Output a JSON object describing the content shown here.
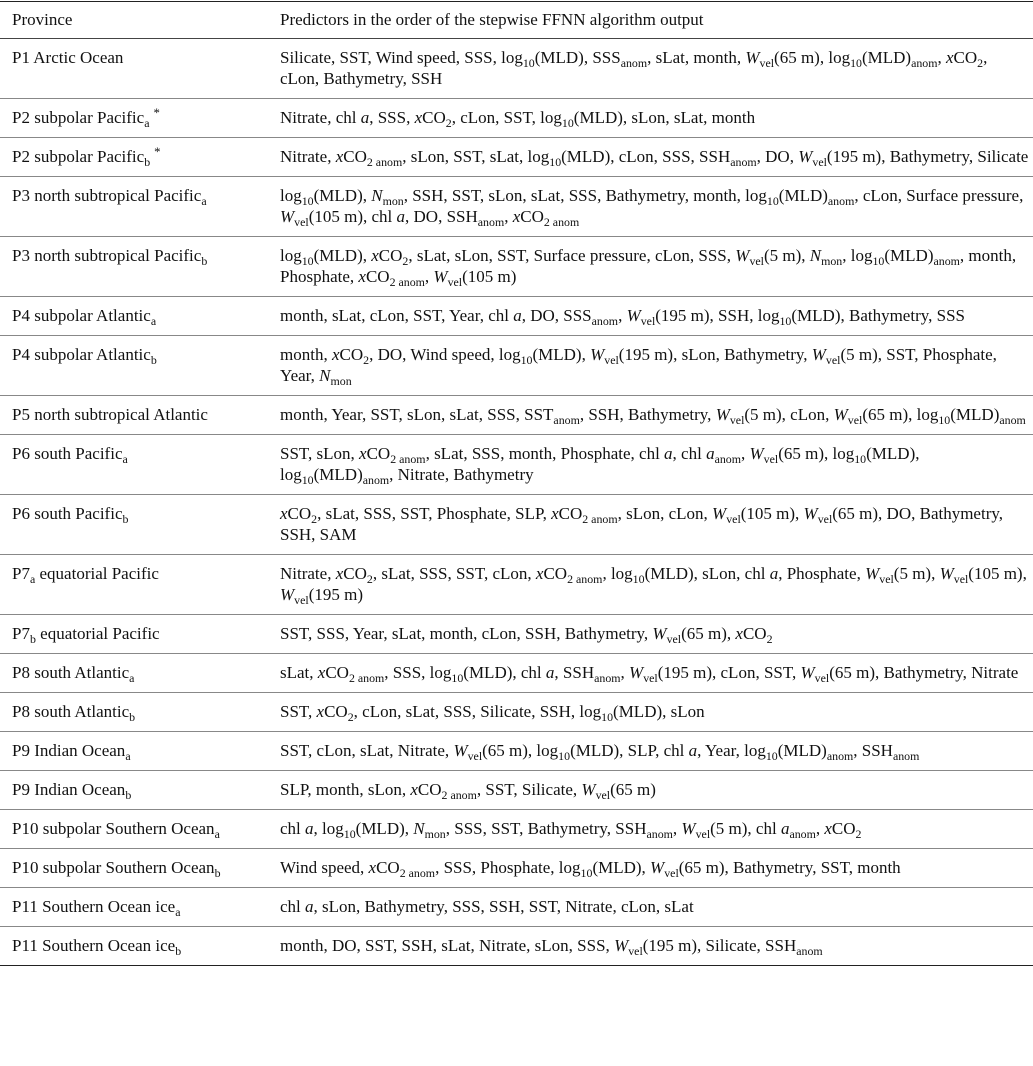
{
  "table": {
    "header": [
      "Province",
      "Predictors in the order of the stepwise FFNN algorithm output"
    ],
    "rows": [
      [
        "P1 Arctic Ocean",
        [
          "Silicate, SST, Wind speed, SSS, log",
          {
            "sub": "10"
          },
          "(MLD), SSS",
          {
            "sub": "anom"
          },
          ", sLat, month, ",
          {
            "i": "W"
          },
          {
            "sub": "vel"
          },
          "(65 m), log",
          {
            "sub": "10"
          },
          "(MLD)",
          {
            "sub": "anom"
          },
          ", ",
          {
            "i": "x"
          },
          "CO",
          {
            "sub": "2"
          },
          ", cLon, Bathymetry, SSH"
        ]
      ],
      [
        [
          "P2 subpolar Pacific",
          {
            "sub": "a"
          },
          {
            "sup": "*"
          }
        ],
        [
          "Nitrate, chl ",
          {
            "i": "a"
          },
          ", SSS, ",
          {
            "i": "x"
          },
          "CO",
          {
            "sub": "2"
          },
          ", cLon, SST, log",
          {
            "sub": "10"
          },
          "(MLD), sLon, sLat, month"
        ]
      ],
      [
        [
          "P2 subpolar Pacific",
          {
            "sub": "b"
          },
          {
            "sup": "*"
          }
        ],
        [
          "Nitrate, ",
          {
            "i": "x"
          },
          "CO",
          {
            "sub": "2 anom"
          },
          ", sLon, SST, sLat, log",
          {
            "sub": "10"
          },
          "(MLD), cLon, SSS, SSH",
          {
            "sub": "anom"
          },
          ", DO, ",
          {
            "i": "W"
          },
          {
            "sub": "vel"
          },
          "(195 m), Bathymetry, Silicate"
        ]
      ],
      [
        [
          "P3 north subtropical Pacific",
          {
            "sub": "a"
          }
        ],
        [
          "log",
          {
            "sub": "10"
          },
          "(MLD), ",
          {
            "i": "N"
          },
          {
            "sub": "mon"
          },
          ", SSH, SST, sLon, sLat, SSS, Bathymetry, month, log",
          {
            "sub": "10"
          },
          "(MLD)",
          {
            "sub": "anom"
          },
          ", cLon, Surface pressure, ",
          {
            "i": "W"
          },
          {
            "sub": "vel"
          },
          "(105 m), chl ",
          {
            "i": "a"
          },
          ", DO, SSH",
          {
            "sub": "anom"
          },
          ", ",
          {
            "i": "x"
          },
          "CO",
          {
            "sub": "2 anom"
          }
        ]
      ],
      [
        [
          "P3 north subtropical Pacific",
          {
            "sub": "b"
          }
        ],
        [
          "log",
          {
            "sub": "10"
          },
          "(MLD), ",
          {
            "i": "x"
          },
          "CO",
          {
            "sub": "2"
          },
          ", sLat, sLon, SST, Surface pressure, cLon, SSS, ",
          {
            "i": "W"
          },
          {
            "sub": "vel"
          },
          "(5 m), ",
          {
            "i": "N"
          },
          {
            "sub": "mon"
          },
          ", log",
          {
            "sub": "10"
          },
          "(MLD)",
          {
            "sub": "anom"
          },
          ", month, Phosphate, ",
          {
            "i": "x"
          },
          "CO",
          {
            "sub": "2 anom"
          },
          ", ",
          {
            "i": "W"
          },
          {
            "sub": "vel"
          },
          "(105 m)"
        ]
      ],
      [
        [
          "P4 subpolar Atlantic",
          {
            "sub": "a"
          }
        ],
        [
          "month, sLat, cLon, SST, Year, chl ",
          {
            "i": "a"
          },
          ", DO, SSS",
          {
            "sub": "anom"
          },
          ", ",
          {
            "i": "W"
          },
          {
            "sub": "vel"
          },
          "(195 m), SSH, log",
          {
            "sub": "10"
          },
          "(MLD), Bathymetry, SSS"
        ]
      ],
      [
        [
          "P4 subpolar Atlantic",
          {
            "sub": "b"
          }
        ],
        [
          "month, ",
          {
            "i": "x"
          },
          "CO",
          {
            "sub": "2"
          },
          ", DO, Wind speed, log",
          {
            "sub": "10"
          },
          "(MLD), ",
          {
            "i": "W"
          },
          {
            "sub": "vel"
          },
          "(195 m), sLon, Bathymetry, ",
          {
            "i": "W"
          },
          {
            "sub": "vel"
          },
          "(5 m), SST, Phosphate, Year, ",
          {
            "i": "N"
          },
          {
            "sub": "mon"
          }
        ]
      ],
      [
        "P5 north subtropical Atlantic",
        [
          "month, Year, SST, sLon, sLat, SSS, SST",
          {
            "sub": "anom"
          },
          ", SSH, Bathymetry, ",
          {
            "i": "W"
          },
          {
            "sub": "vel"
          },
          "(5 m), cLon, ",
          {
            "i": "W"
          },
          {
            "sub": "vel"
          },
          "(65 m), log",
          {
            "sub": "10"
          },
          "(MLD)",
          {
            "sub": "anom"
          }
        ]
      ],
      [
        [
          "P6 south Pacific",
          {
            "sub": "a"
          }
        ],
        [
          "SST, sLon, ",
          {
            "i": "x"
          },
          "CO",
          {
            "sub": "2 anom"
          },
          ", sLat, SSS, month, Phosphate, chl ",
          {
            "i": "a"
          },
          ", chl ",
          {
            "i": "a"
          },
          {
            "sub": "anom"
          },
          ", ",
          {
            "i": "W"
          },
          {
            "sub": "vel"
          },
          "(65 m), log",
          {
            "sub": "10"
          },
          "(MLD), log",
          {
            "sub": "10"
          },
          "(MLD)",
          {
            "sub": "anom"
          },
          ", Nitrate, Bathymetry"
        ]
      ],
      [
        [
          "P6 south Pacific",
          {
            "sub": "b"
          }
        ],
        [
          {
            "i": "x"
          },
          "CO",
          {
            "sub": "2"
          },
          ", sLat, SSS, SST, Phosphate, SLP, ",
          {
            "i": "x"
          },
          "CO",
          {
            "sub": "2 anom"
          },
          ", sLon, cLon, ",
          {
            "i": "W"
          },
          {
            "sub": "vel"
          },
          "(105 m), ",
          {
            "i": "W"
          },
          {
            "sub": "vel"
          },
          "(65 m), DO, Bathymetry, SSH, SAM"
        ]
      ],
      [
        [
          "P7",
          {
            "sub": "a"
          },
          " equatorial Pacific"
        ],
        [
          "Nitrate, ",
          {
            "i": "x"
          },
          "CO",
          {
            "sub": "2"
          },
          ", sLat, SSS, SST, cLon, ",
          {
            "i": "x"
          },
          "CO",
          {
            "sub": "2 anom"
          },
          ", log",
          {
            "sub": "10"
          },
          "(MLD), sLon, chl ",
          {
            "i": "a"
          },
          ", Phosphate, ",
          {
            "i": "W"
          },
          {
            "sub": "vel"
          },
          "(5 m), ",
          {
            "i": "W"
          },
          {
            "sub": "vel"
          },
          "(105 m), ",
          {
            "i": "W"
          },
          {
            "sub": "vel"
          },
          "(195 m)"
        ]
      ],
      [
        [
          "P7",
          {
            "sub": "b"
          },
          " equatorial Pacific"
        ],
        [
          "SST, SSS, Year, sLat, month, cLon, SSH, Bathymetry, ",
          {
            "i": "W"
          },
          {
            "sub": "vel"
          },
          "(65 m), ",
          {
            "i": "x"
          },
          "CO",
          {
            "sub": "2"
          }
        ]
      ],
      [
        [
          "P8 south Atlantic",
          {
            "sub": "a"
          }
        ],
        [
          "sLat, ",
          {
            "i": "x"
          },
          "CO",
          {
            "sub": "2 anom"
          },
          ", SSS, log",
          {
            "sub": "10"
          },
          "(MLD), chl ",
          {
            "i": "a"
          },
          ", SSH",
          {
            "sub": "anom"
          },
          ", ",
          {
            "i": "W"
          },
          {
            "sub": "vel"
          },
          "(195 m), cLon, SST, ",
          {
            "i": "W"
          },
          {
            "sub": "vel"
          },
          "(65 m), Bathymetry, Nitrate"
        ]
      ],
      [
        [
          "P8 south Atlantic",
          {
            "sub": "b"
          }
        ],
        [
          "SST, ",
          {
            "i": "x"
          },
          "CO",
          {
            "sub": "2"
          },
          ", cLon, sLat, SSS, Silicate, SSH, log",
          {
            "sub": "10"
          },
          "(MLD), sLon"
        ]
      ],
      [
        [
          "P9 Indian Ocean",
          {
            "sub": "a"
          }
        ],
        [
          "SST, cLon, sLat, Nitrate, ",
          {
            "i": "W"
          },
          {
            "sub": "vel"
          },
          "(65 m), log",
          {
            "sub": "10"
          },
          "(MLD), SLP, chl ",
          {
            "i": "a"
          },
          ", Year, log",
          {
            "sub": "10"
          },
          "(MLD)",
          {
            "sub": "anom"
          },
          ", SSH",
          {
            "sub": "anom"
          }
        ]
      ],
      [
        [
          "P9 Indian Ocean",
          {
            "sub": "b"
          }
        ],
        [
          "SLP, month, sLon, ",
          {
            "i": "x"
          },
          "CO",
          {
            "sub": "2 anom"
          },
          ", SST, Silicate, ",
          {
            "i": "W"
          },
          {
            "sub": "vel"
          },
          "(65 m)"
        ]
      ],
      [
        [
          "P10 subpolar Southern Ocean",
          {
            "sub": "a"
          }
        ],
        [
          "chl ",
          {
            "i": "a"
          },
          ", log",
          {
            "sub": "10"
          },
          "(MLD), ",
          {
            "i": "N"
          },
          {
            "sub": "mon"
          },
          ", SSS, SST, Bathymetry, SSH",
          {
            "sub": "anom"
          },
          ", ",
          {
            "i": "W"
          },
          {
            "sub": "vel"
          },
          "(5 m), chl ",
          {
            "i": "a"
          },
          {
            "sub": "anom"
          },
          ", ",
          {
            "i": "x"
          },
          "CO",
          {
            "sub": "2"
          }
        ]
      ],
      [
        [
          "P10 subpolar Southern Ocean",
          {
            "sub": "b"
          }
        ],
        [
          "Wind speed, ",
          {
            "i": "x"
          },
          "CO",
          {
            "sub": "2 anom"
          },
          ", SSS, Phosphate, log",
          {
            "sub": "10"
          },
          "(MLD), ",
          {
            "i": "W"
          },
          {
            "sub": "vel"
          },
          "(65 m), Bathymetry, SST, month"
        ]
      ],
      [
        [
          "P11 Southern Ocean ice",
          {
            "sub": "a"
          }
        ],
        [
          "chl ",
          {
            "i": "a"
          },
          ", sLon, Bathymetry, SSS, SSH, SST, Nitrate, cLon, sLat"
        ]
      ],
      [
        [
          "P11 Southern Ocean ice",
          {
            "sub": "b"
          }
        ],
        [
          "month, DO, SST, SSH, sLat, Nitrate, sLon, SSS, ",
          {
            "i": "W"
          },
          {
            "sub": "vel"
          },
          "(195 m), Silicate, SSH",
          {
            "sub": "anom"
          }
        ]
      ]
    ]
  }
}
